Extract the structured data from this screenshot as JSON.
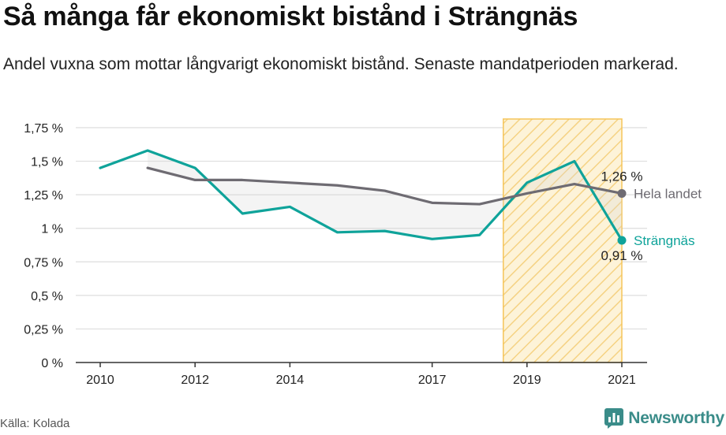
{
  "title": "Så många får ekonomiskt bistånd i Strängnäs",
  "subtitle": "Andel vuxna som mottar långvarigt ekonomiskt bistånd. Senaste mandatperioden markerad.",
  "source": "Källa: Kolada",
  "brand": "Newsworthy",
  "colors": {
    "strangnas": "#0fa39a",
    "hela_landet": "#6e6b72",
    "highlight_fill": "#fbe3a6",
    "highlight_stroke": "#f5c55b",
    "grid": "#dddddd"
  },
  "chart_data": {
    "type": "line",
    "ylim": [
      0,
      1.75
    ],
    "xlim": [
      2010,
      2021
    ],
    "y_ticks": [
      0,
      0.25,
      0.5,
      0.75,
      1,
      1.25,
      1.5,
      1.75
    ],
    "y_tick_labels": [
      "0 %",
      "0,25 %",
      "0,5 %",
      "0,75 %",
      "1 %",
      "1,25 %",
      "1,5 %",
      "1,75 %"
    ],
    "x_ticks": [
      2010,
      2012,
      2014,
      2017,
      2019,
      2021
    ],
    "x_tick_labels": [
      "2010",
      "2012",
      "2014",
      "2017",
      "2019",
      "2021"
    ],
    "highlight_period": [
      2018.5,
      2021
    ],
    "series": [
      {
        "name": "Strängnäs",
        "key": "strangnas",
        "x": [
          2010,
          2011,
          2012,
          2013,
          2014,
          2015,
          2016,
          2017,
          2018,
          2019,
          2020,
          2021
        ],
        "values": [
          1.45,
          1.58,
          1.45,
          1.11,
          1.16,
          0.97,
          0.98,
          0.92,
          0.95,
          1.34,
          1.5,
          0.91
        ],
        "end_label": "0,91 %"
      },
      {
        "name": "Hela landet",
        "key": "hela_landet",
        "x": [
          2011,
          2012,
          2013,
          2014,
          2015,
          2016,
          2017,
          2018,
          2019,
          2020,
          2021
        ],
        "values": [
          1.45,
          1.36,
          1.36,
          1.34,
          1.32,
          1.28,
          1.19,
          1.18,
          1.26,
          1.33,
          1.26
        ],
        "end_label": "1,26 %"
      }
    ]
  }
}
